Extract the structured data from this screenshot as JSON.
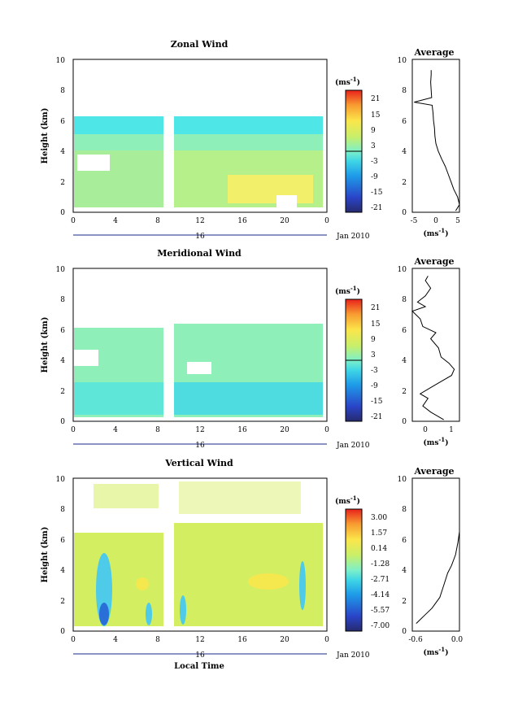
{
  "chart_data": [
    {
      "type": "heatmap",
      "title": "Zonal Wind",
      "ylabel": "Height (km)",
      "xticks": [
        "0",
        "4",
        "8",
        "12",
        "16",
        "20",
        "0"
      ],
      "xlim": [
        0,
        24
      ],
      "ylim": [
        0,
        10
      ],
      "yticks": [
        "0",
        "2",
        "4",
        "6",
        "8",
        "10"
      ],
      "date_label": "16",
      "month_label": "Jan 2010",
      "colorbar": {
        "unit": "(ms",
        "unit_exp": "-1",
        "unit_close": ")",
        "ticks": [
          "21",
          "15",
          "9",
          "3",
          "-3",
          "-9",
          "-15",
          "-21"
        ],
        "range": [
          -21,
          21
        ]
      },
      "average": {
        "title": "Average",
        "xlabel": "(ms",
        "xlabel_exp": "-1",
        "xlabel_close": ")",
        "xticks": [
          "-5",
          "0",
          "5"
        ],
        "xlim": [
          -5,
          5
        ],
        "profile": [
          [
            4.2,
            0.1
          ],
          [
            5.0,
            0.5
          ],
          [
            4.6,
            1.0
          ],
          [
            3.8,
            1.5
          ],
          [
            3.2,
            2.0
          ],
          [
            2.6,
            2.5
          ],
          [
            2.0,
            3.0
          ],
          [
            1.2,
            3.5
          ],
          [
            0.5,
            4.0
          ],
          [
            0.0,
            4.5
          ],
          [
            -0.2,
            5.0
          ],
          [
            -0.3,
            5.5
          ],
          [
            -0.5,
            6.0
          ],
          [
            -0.6,
            6.5
          ],
          [
            -0.8,
            7.0
          ],
          [
            -4.6,
            7.2
          ],
          [
            -0.9,
            7.5
          ],
          [
            -1.0,
            8.0
          ],
          [
            -1.1,
            8.5
          ],
          [
            -1.0,
            9.0
          ],
          [
            -1.0,
            9.3
          ]
        ]
      }
    },
    {
      "type": "heatmap",
      "title": "Meridional Wind",
      "ylabel": "Height (km)",
      "xticks": [
        "0",
        "4",
        "8",
        "12",
        "16",
        "20",
        "0"
      ],
      "xlim": [
        0,
        24
      ],
      "ylim": [
        0,
        10
      ],
      "yticks": [
        "0",
        "2",
        "4",
        "6",
        "8",
        "10"
      ],
      "date_label": "16",
      "month_label": "Jan 2010",
      "colorbar": {
        "unit": "(ms",
        "unit_exp": "-1",
        "unit_close": ")",
        "ticks": [
          "21",
          "15",
          "9",
          "3",
          "-3",
          "-9",
          "-15",
          "-21"
        ],
        "range": [
          -21,
          21
        ]
      },
      "average": {
        "title": "Average",
        "xlabel": "(ms",
        "xlabel_exp": "-1",
        "xlabel_close": ")",
        "xticks": [
          "0",
          "1"
        ],
        "xlim": [
          -0.5,
          1.3
        ],
        "profile": [
          [
            0.7,
            0.1
          ],
          [
            0.2,
            0.6
          ],
          [
            -0.1,
            1.0
          ],
          [
            0.1,
            1.5
          ],
          [
            -0.2,
            1.8
          ],
          [
            0.2,
            2.2
          ],
          [
            0.6,
            2.6
          ],
          [
            1.0,
            3.0
          ],
          [
            1.1,
            3.4
          ],
          [
            0.9,
            3.8
          ],
          [
            0.6,
            4.2
          ],
          [
            0.5,
            4.8
          ],
          [
            0.2,
            5.4
          ],
          [
            0.4,
            5.8
          ],
          [
            -0.1,
            6.2
          ],
          [
            -0.2,
            6.7
          ],
          [
            -0.5,
            7.2
          ],
          [
            0.0,
            7.5
          ],
          [
            -0.3,
            7.8
          ],
          [
            0.0,
            8.2
          ],
          [
            0.2,
            8.7
          ],
          [
            0.0,
            9.2
          ],
          [
            0.1,
            9.5
          ]
        ]
      }
    },
    {
      "type": "heatmap",
      "title": "Vertical Wind",
      "ylabel": "Height (km)",
      "xlabel": "Local Time",
      "xticks": [
        "0",
        "4",
        "8",
        "12",
        "16",
        "20",
        "0"
      ],
      "xlim": [
        0,
        24
      ],
      "ylim": [
        0,
        10
      ],
      "yticks": [
        "0",
        "2",
        "4",
        "6",
        "8",
        "10"
      ],
      "date_label": "16",
      "month_label": "Jan 2010",
      "colorbar": {
        "unit": "(ms",
        "unit_exp": "-1",
        "unit_close": ")",
        "ticks": [
          "3.00",
          "1.57",
          "0.14",
          "-1.28",
          "-2.71",
          "-4.14",
          "-5.57",
          "-7.00"
        ],
        "range": [
          -7.0,
          3.0
        ]
      },
      "average": {
        "title": "Average",
        "xlabel": "(ms",
        "xlabel_exp": "-1",
        "xlabel_close": ")",
        "xticks": [
          "-0.6",
          "0.0"
        ],
        "xlim": [
          -0.6,
          0.0
        ],
        "profile": [
          [
            -0.55,
            0.5
          ],
          [
            -0.45,
            1.0
          ],
          [
            -0.35,
            1.5
          ],
          [
            -0.25,
            2.2
          ],
          [
            -0.2,
            3.0
          ],
          [
            -0.15,
            3.8
          ],
          [
            -0.1,
            4.3
          ],
          [
            -0.05,
            5.0
          ],
          [
            -0.02,
            5.8
          ],
          [
            0.0,
            6.5
          ],
          [
            0.0,
            7.5
          ],
          [
            0.0,
            8.5
          ],
          [
            0.0,
            9.5
          ],
          [
            0.0,
            10.0
          ]
        ]
      }
    }
  ]
}
